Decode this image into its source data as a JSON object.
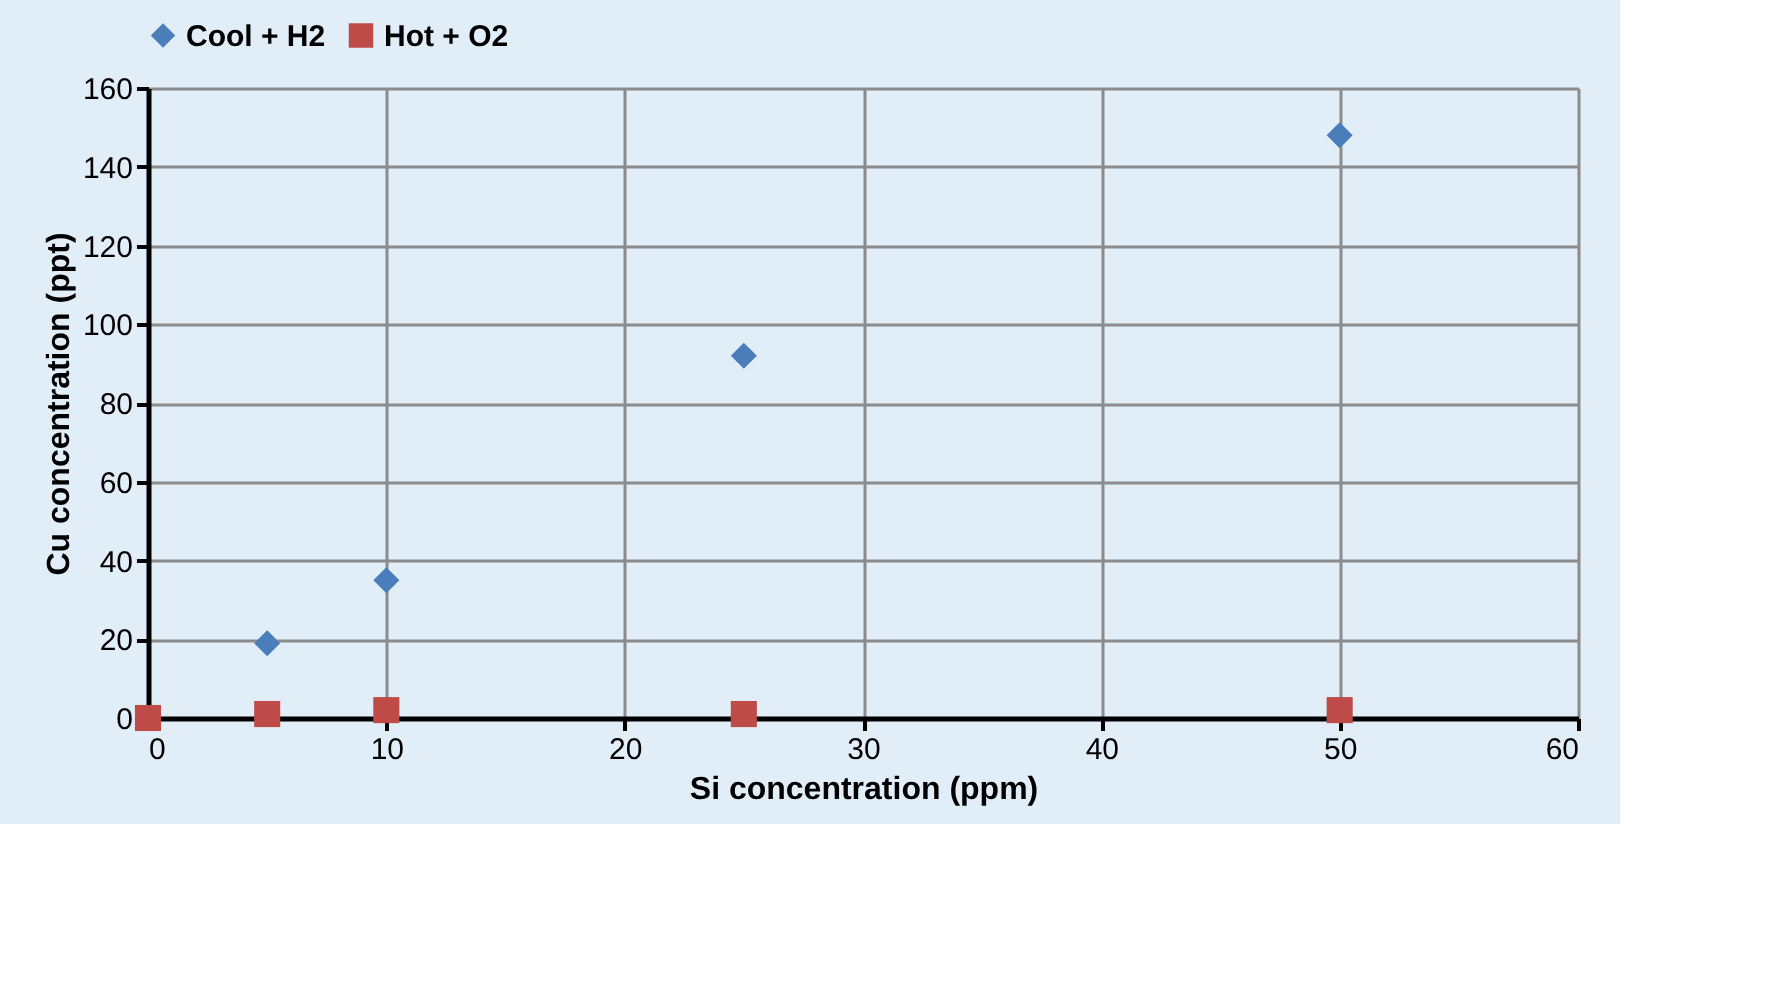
{
  "chart_data": {
    "type": "scatter",
    "xlabel": "Si concentration (ppm)",
    "ylabel": "Cu concentration (ppt)",
    "xlim": [
      0,
      60
    ],
    "xticks": [
      0,
      10,
      20,
      30,
      40,
      50,
      60
    ],
    "ylim": [
      0,
      160
    ],
    "yticks": [
      0,
      20,
      40,
      60,
      80,
      100,
      120,
      140,
      160
    ],
    "grid": true,
    "legend": "top",
    "series": [
      {
        "name": "Cool + H2",
        "color": "#4a7ebb",
        "marker": "diamond",
        "x": [
          5,
          10,
          25,
          50
        ],
        "values": [
          19,
          35,
          92,
          148
        ]
      },
      {
        "name": "Hot + O2",
        "color": "#be4b48",
        "marker": "square",
        "x": [
          0,
          5,
          10,
          25,
          50
        ],
        "values": [
          0,
          1,
          2,
          1,
          2
        ]
      }
    ]
  }
}
